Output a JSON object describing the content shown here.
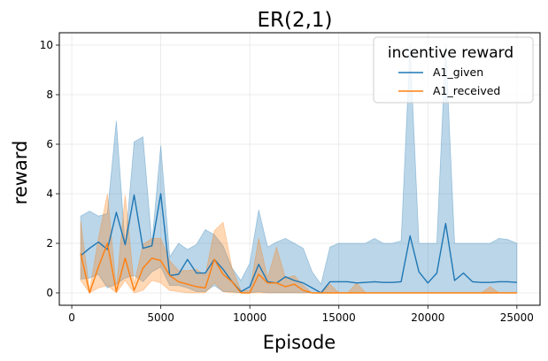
{
  "chart_data": {
    "type": "line",
    "title": "ER(2,1)",
    "xlabel": "Episode",
    "ylabel": "reward",
    "xlim": [
      -700,
      26300
    ],
    "ylim": [
      -0.5,
      10.5
    ],
    "xticks": [
      0,
      5000,
      10000,
      15000,
      20000,
      25000
    ],
    "yticks": [
      0,
      2,
      4,
      6,
      8,
      10
    ],
    "grid": true,
    "legend": {
      "title": "incentive reward",
      "placement": "top-right"
    },
    "series": [
      {
        "name": "A1_given",
        "color": "#1f77b4",
        "x": [
          500,
          1000,
          1500,
          2000,
          2500,
          3000,
          3500,
          4000,
          4500,
          5000,
          5500,
          6000,
          6500,
          7000,
          7500,
          8000,
          8500,
          9000,
          9500,
          10000,
          10500,
          11000,
          11500,
          12000,
          12500,
          13000,
          13500,
          14000,
          14500,
          15000,
          15500,
          16000,
          16500,
          17000,
          17500,
          18000,
          18500,
          19000,
          19500,
          20000,
          20500,
          21000,
          21500,
          22000,
          22500,
          23000,
          23500,
          24000,
          24500,
          25000
        ],
        "values": [
          1.5,
          1.8,
          2.05,
          1.75,
          3.25,
          1.95,
          3.95,
          1.8,
          1.9,
          4.0,
          0.7,
          0.75,
          1.35,
          0.8,
          0.8,
          1.35,
          0.95,
          0.45,
          0.05,
          0.25,
          1.15,
          0.45,
          0.4,
          0.65,
          0.5,
          0.4,
          0.2,
          0.0,
          0.45,
          0.45,
          0.45,
          0.4,
          0.42,
          0.45,
          0.42,
          0.42,
          0.45,
          2.3,
          0.85,
          0.4,
          0.8,
          2.8,
          0.5,
          0.8,
          0.45,
          0.42,
          0.42,
          0.45,
          0.45,
          0.42
        ],
        "lower": [
          0.55,
          0.6,
          0.75,
          0.2,
          0.35,
          0.6,
          0.7,
          0.45,
          0.85,
          1.05,
          0.3,
          0.3,
          0.2,
          0.05,
          0.05,
          0.3,
          0.05,
          0.05,
          0.0,
          0.0,
          0.05,
          0.0,
          0.0,
          0.0,
          0.0,
          0.0,
          0.0,
          0.0,
          0.0,
          0.0,
          0.0,
          0.0,
          0.0,
          0.0,
          0.0,
          0.0,
          0.0,
          0.0,
          0.0,
          0.0,
          0.0,
          0.0,
          0.0,
          0.0,
          0.0,
          0.0,
          0.0,
          0.0,
          0.0,
          0.0
        ],
        "upper": [
          3.1,
          3.3,
          3.1,
          3.2,
          6.95,
          1.9,
          6.1,
          6.3,
          2.0,
          5.95,
          1.45,
          2.0,
          1.75,
          1.95,
          2.55,
          2.35,
          1.9,
          1.0,
          0.5,
          1.2,
          3.35,
          1.85,
          2.05,
          2.2,
          2.0,
          1.8,
          0.85,
          0.35,
          1.85,
          2.0,
          2.0,
          2.0,
          2.0,
          2.2,
          2.0,
          2.0,
          2.1,
          10.0,
          2.0,
          2.0,
          2.0,
          10.0,
          2.0,
          2.0,
          2.0,
          2.0,
          2.0,
          2.2,
          2.15,
          2.0
        ]
      },
      {
        "name": "A1_received",
        "color": "#ff7f0e",
        "x": [
          500,
          1000,
          1500,
          2000,
          2500,
          3000,
          3500,
          4000,
          4500,
          5000,
          5500,
          6000,
          6500,
          7000,
          7500,
          8000,
          8500,
          9000,
          9500,
          10000,
          10500,
          11000,
          11500,
          12000,
          12500,
          13000,
          13500,
          14000,
          14500,
          15000,
          15500,
          16000,
          16500,
          17000,
          17500,
          18000,
          18500,
          19000,
          19500,
          20000,
          20500,
          21000,
          21500,
          22000,
          22500,
          23000,
          23500,
          24000,
          24500,
          25000
        ],
        "values": [
          1.6,
          0.0,
          1.05,
          2.0,
          0.05,
          1.4,
          0.1,
          1.0,
          1.4,
          1.3,
          0.7,
          0.45,
          0.35,
          0.25,
          0.2,
          1.35,
          0.75,
          0.45,
          0.0,
          0.0,
          0.75,
          0.4,
          0.4,
          0.25,
          0.35,
          0.1,
          0.0,
          0.0,
          0.0,
          0.0,
          0.0,
          0.0,
          0.0,
          0.0,
          0.0,
          0.0,
          0.0,
          0.0,
          0.0,
          0.0,
          0.0,
          0.0,
          0.0,
          0.0,
          0.0,
          0.0,
          0.0,
          0.0,
          0.0,
          0.0
        ],
        "lower": [
          0.5,
          0.0,
          0.2,
          0.3,
          0.0,
          0.5,
          0.0,
          0.1,
          0.5,
          0.4,
          0.1,
          0.05,
          0.0,
          0.0,
          0.0,
          0.4,
          0.05,
          0.0,
          0.0,
          0.0,
          0.0,
          0.0,
          0.0,
          0.0,
          0.0,
          0.0,
          0.0,
          0.0,
          0.0,
          0.0,
          0.0,
          0.0,
          0.0,
          0.0,
          0.0,
          0.0,
          0.0,
          0.0,
          0.0,
          0.0,
          0.0,
          0.0,
          0.0,
          0.0,
          0.0,
          0.0,
          0.0,
          0.0,
          0.0,
          0.0
        ],
        "upper": [
          2.9,
          0.1,
          2.2,
          4.0,
          0.2,
          3.95,
          0.35,
          1.95,
          2.2,
          2.2,
          1.3,
          0.9,
          0.9,
          0.95,
          0.7,
          2.5,
          2.85,
          1.0,
          0.1,
          0.1,
          2.2,
          0.6,
          1.85,
          0.6,
          0.7,
          0.3,
          0.0,
          0.0,
          0.35,
          0.0,
          0.0,
          0.4,
          0.0,
          0.0,
          0.0,
          0.0,
          0.0,
          0.0,
          0.0,
          0.0,
          0.0,
          0.0,
          0.0,
          0.0,
          0.0,
          0.0,
          0.25,
          0.0,
          0.0,
          0.0
        ]
      }
    ]
  }
}
